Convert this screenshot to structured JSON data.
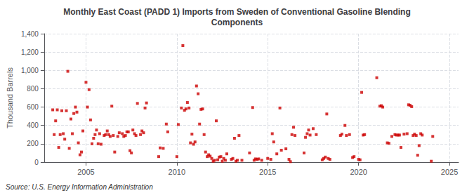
{
  "chart_data": {
    "type": "scatter",
    "title": "Monthly East Coast (PADD 1) Imports from Sweden of Conventional Gasoline Blending\nComponents",
    "ylabel": "Thousand Barrels",
    "source": "Source: U.S. Energy Information Administration",
    "color": "#cc0000",
    "marker": "square",
    "grid": true,
    "xlim": [
      2002.7,
      2025.5
    ],
    "xticks": [
      2005,
      2010,
      2015,
      2020,
      2025
    ],
    "ylim": [
      0,
      1400
    ],
    "yticks": [
      0,
      200,
      400,
      600,
      800,
      {
        "value": 1000,
        "label": "1,000"
      },
      {
        "value": 1200,
        "label": "1,200"
      },
      {
        "value": 1400,
        "label": "1,400"
      }
    ],
    "x": [
      2003.17,
      2003.25,
      2003.33,
      2003.42,
      2003.5,
      2003.58,
      2003.67,
      2003.75,
      2003.83,
      2003.92,
      2004.0,
      2004.08,
      2004.17,
      2004.25,
      2004.33,
      2004.42,
      2004.5,
      2004.58,
      2004.67,
      2004.75,
      2004.83,
      2005.0,
      2005.08,
      2005.17,
      2005.25,
      2005.33,
      2005.42,
      2005.5,
      2005.58,
      2005.67,
      2005.75,
      2005.83,
      2006.0,
      2006.08,
      2006.17,
      2006.25,
      2006.33,
      2006.42,
      2006.5,
      2006.58,
      2006.75,
      2006.83,
      2007.0,
      2007.08,
      2007.17,
      2007.25,
      2007.33,
      2007.42,
      2007.5,
      2007.58,
      2007.67,
      2007.75,
      2007.83,
      2008.0,
      2008.08,
      2008.17,
      2008.25,
      2008.33,
      2009.0,
      2009.08,
      2009.25,
      2009.42,
      2009.5,
      2010.0,
      2010.08,
      2010.25,
      2010.33,
      2010.42,
      2010.5,
      2010.58,
      2010.67,
      2010.75,
      2010.83,
      2010.92,
      2011.0,
      2011.08,
      2011.17,
      2011.25,
      2011.33,
      2011.42,
      2011.5,
      2011.58,
      2011.67,
      2011.75,
      2011.83,
      2011.92,
      2012.0,
      2012.08,
      2012.17,
      2012.25,
      2012.33,
      2012.42,
      2012.5,
      2012.58,
      2012.67,
      2012.75,
      2013.0,
      2013.08,
      2013.17,
      2013.25,
      2013.33,
      2013.42,
      2013.58,
      2014.0,
      2014.17,
      2014.25,
      2014.33,
      2014.42,
      2014.5,
      2014.67,
      2015.0,
      2015.17,
      2015.25,
      2015.33,
      2015.5,
      2015.67,
      2015.75,
      2016.0,
      2016.17,
      2016.25,
      2016.33,
      2016.42,
      2016.5,
      2017.0,
      2017.08,
      2017.17,
      2017.25,
      2017.33,
      2017.5,
      2017.67,
      2018.0,
      2018.08,
      2018.17,
      2018.25,
      2018.33,
      2018.42,
      2019.0,
      2019.08,
      2019.25,
      2019.33,
      2019.5,
      2019.67,
      2019.75,
      2020.0,
      2020.08,
      2020.17,
      2020.25,
      2020.33,
      2021.0,
      2021.17,
      2021.25,
      2021.33,
      2021.58,
      2021.67,
      2021.83,
      2022.0,
      2022.08,
      2022.17,
      2022.25,
      2022.33,
      2022.5,
      2022.67,
      2022.75,
      2022.83,
      2022.92,
      2023.0,
      2023.08,
      2023.17,
      2023.25,
      2023.33,
      2023.42,
      2023.5,
      2024.0,
      2024.08
    ],
    "values": [
      570,
      300,
      450,
      570,
      160,
      300,
      560,
      310,
      250,
      560,
      990,
      150,
      470,
      310,
      530,
      600,
      545,
      210,
      80,
      110,
      340,
      870,
      600,
      790,
      460,
      200,
      260,
      300,
      350,
      200,
      310,
      195,
      290,
      300,
      340,
      300,
      280,
      610,
      290,
      110,
      280,
      320,
      310,
      280,
      290,
      330,
      330,
      125,
      100,
      350,
      310,
      290,
      640,
      300,
      340,
      320,
      590,
      645,
      60,
      155,
      150,
      415,
      330,
      60,
      410,
      590,
      1270,
      565,
      580,
      650,
      590,
      210,
      305,
      195,
      220,
      830,
      745,
      415,
      575,
      580,
      300,
      110,
      60,
      80,
      65,
      40,
      10,
      20,
      450,
      25,
      55,
      60,
      10,
      40,
      20,
      90,
      30,
      40,
      260,
      10,
      20,
      290,
      20,
      100,
      595,
      20,
      35,
      30,
      35,
      20,
      40,
      30,
      310,
      220,
      90,
      590,
      130,
      145,
      30,
      5,
      300,
      380,
      290,
      100,
      270,
      310,
      350,
      295,
      365,
      300,
      25,
      40,
      55,
      525,
      40,
      30,
      290,
      305,
      400,
      290,
      300,
      50,
      60,
      30,
      25,
      760,
      295,
      300,
      920,
      610,
      615,
      600,
      210,
      205,
      280,
      300,
      295,
      295,
      295,
      160,
      305,
      310,
      625,
      620,
      605,
      290,
      305,
      290,
      75,
      180,
      310,
      295,
      10,
      280
    ]
  }
}
